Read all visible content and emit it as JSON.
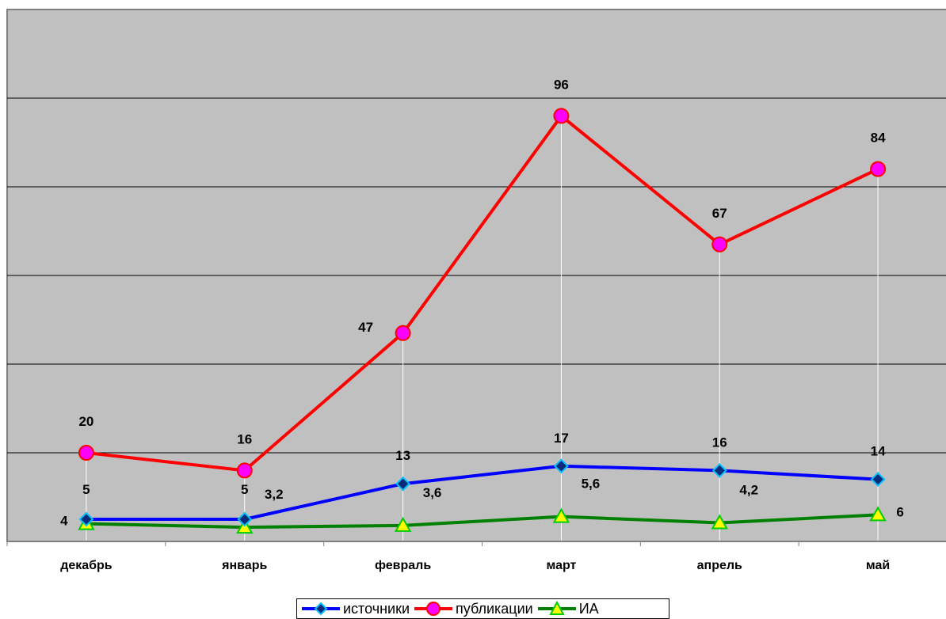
{
  "chart_data": {
    "type": "line",
    "categories": [
      "декабрь",
      "январь",
      "февраль",
      "март",
      "апрель",
      "май"
    ],
    "ylim": [
      0,
      120
    ],
    "grid": true,
    "legend_position": "bottom",
    "series": [
      {
        "name": "источники",
        "values": [
          5,
          5,
          13,
          17,
          16,
          14
        ],
        "labels": [
          "5",
          "5",
          "13",
          "17",
          "16",
          "14"
        ],
        "color": "#0000ff",
        "marker": "diamond",
        "marker_color": "#0a2a7a",
        "marker_edge": "#00c0ff"
      },
      {
        "name": "публикации",
        "values": [
          20,
          16,
          47,
          96,
          67,
          84
        ],
        "labels": [
          "20",
          "16",
          "47",
          "96",
          "67",
          "84"
        ],
        "color": "#ff0000",
        "marker": "circle",
        "marker_color": "#ff00ff",
        "marker_edge": "#ff0000"
      },
      {
        "name": "ИА",
        "values": [
          4,
          3.2,
          3.6,
          5.6,
          4.2,
          6
        ],
        "labels": [
          "4",
          "3,2",
          "3,6",
          "5,6",
          "4,2",
          "6"
        ],
        "color": "#008000",
        "marker": "triangle",
        "marker_color": "#ffff00",
        "marker_edge": "#00cc00"
      }
    ]
  }
}
